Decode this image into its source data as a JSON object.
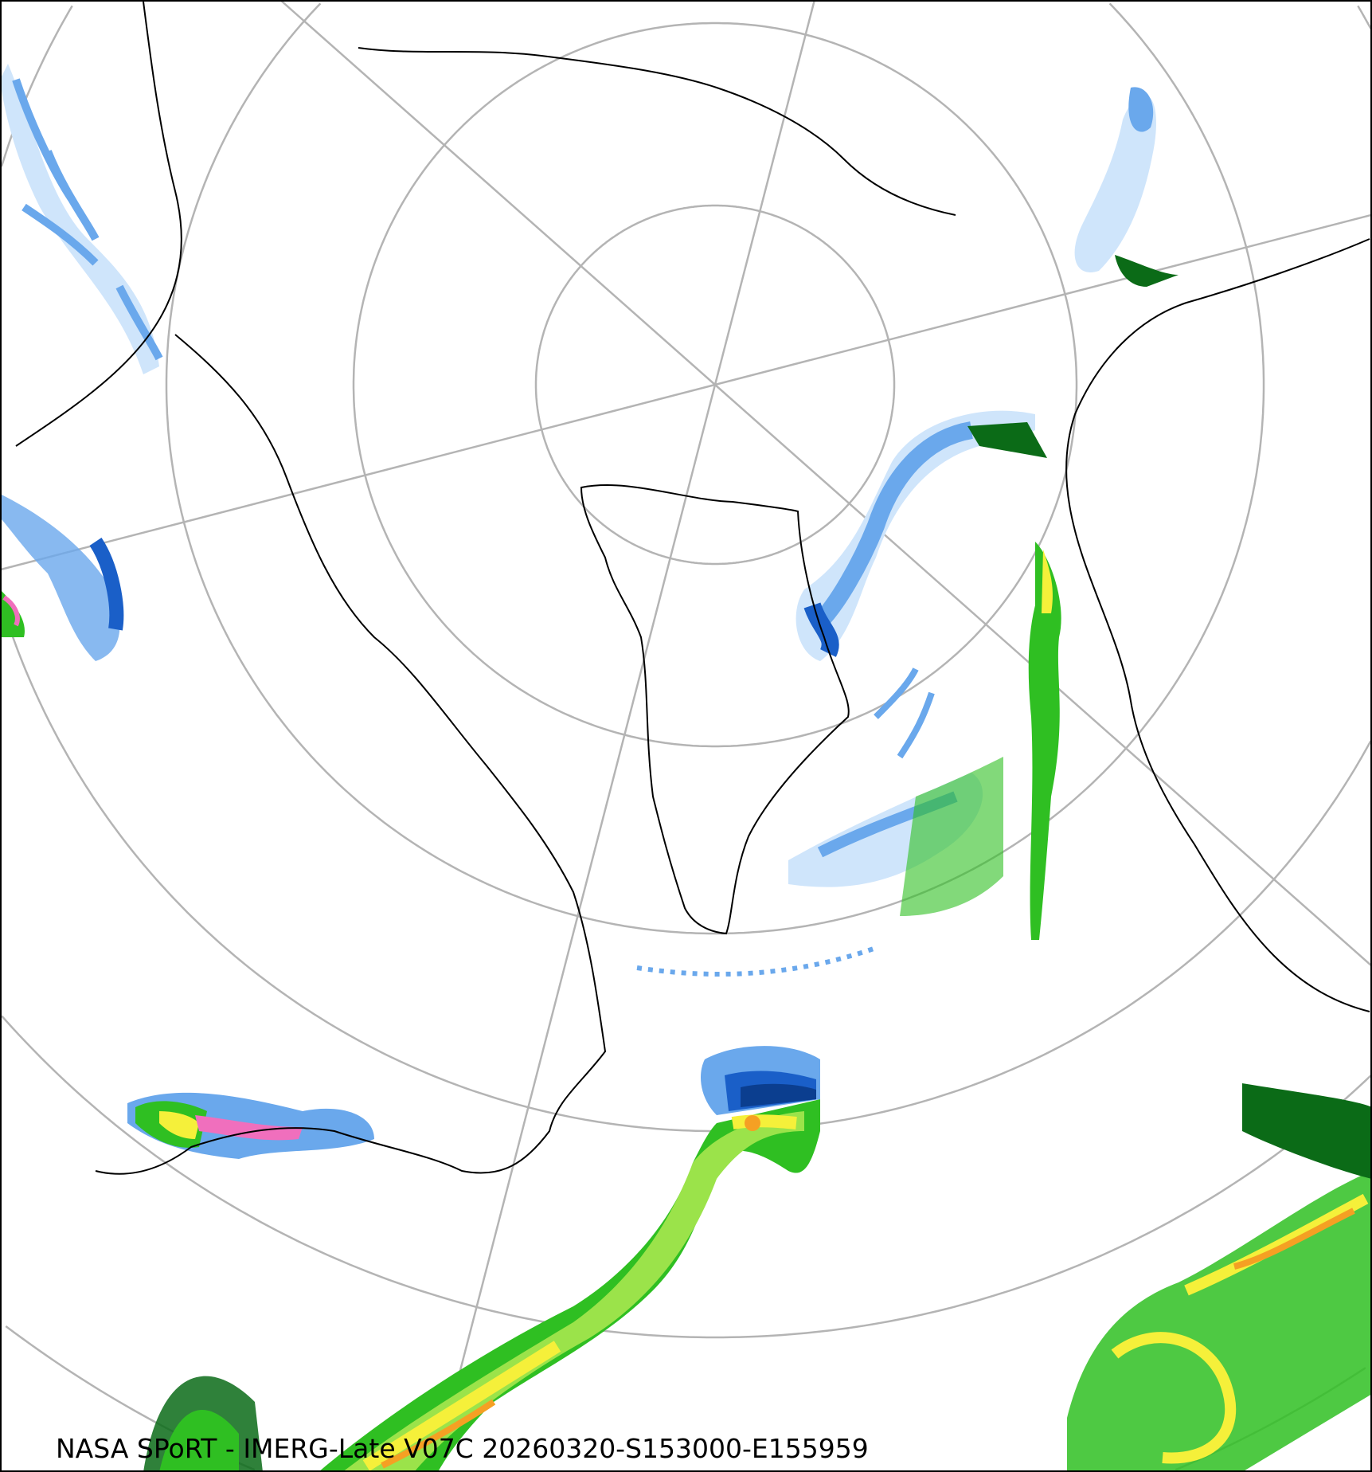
{
  "caption": "NASA SPoRT - IMERG-Late V07C 20260320-S153000-E155959",
  "projection": "north-polar-stereographic",
  "colors": {
    "graticule": "#b4b4b4",
    "coastline": "#000000",
    "precip_light_blue": "#cfe5fb",
    "precip_blue": "#6aa8ec",
    "precip_dark_blue": "#1a5fc8",
    "precip_navy": "#0b3e8f",
    "precip_pink": "#f06fbd",
    "rain_dark_green": "#0b6b17",
    "rain_green": "#2fbf22",
    "rain_light_green": "#9be34a",
    "rain_yellow": "#f5f03a",
    "rain_orange": "#f5a023",
    "rain_red": "#e03a18"
  }
}
